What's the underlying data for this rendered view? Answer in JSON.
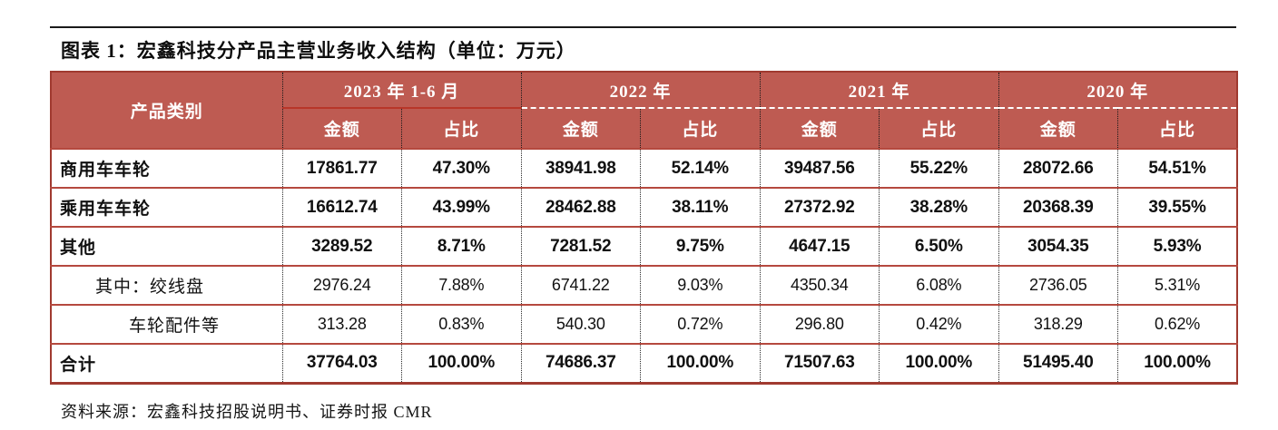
{
  "title": "图表 1：宏鑫科技分产品主营业务收入结构（单位：万元）",
  "source": "资料来源：宏鑫科技招股说明书、证券时报 CMR",
  "colors": {
    "header_bg": "#BE5B52",
    "table_border": "#A03A30",
    "row_separator": "#B5493F",
    "header_text": "#FFFFFF"
  },
  "table": {
    "product_col_header": "产品类别",
    "year_groups": [
      {
        "label": "2023 年 1-6 月"
      },
      {
        "label": "2022 年"
      },
      {
        "label": "2021 年"
      },
      {
        "label": "2020 年"
      }
    ],
    "sub_headers": {
      "amount": "金额",
      "share": "占比"
    },
    "rows": [
      {
        "label": "商用车车轮",
        "bold": true,
        "indent": 0,
        "values": [
          "17861.77",
          "47.30%",
          "38941.98",
          "52.14%",
          "39487.56",
          "55.22%",
          "28072.66",
          "54.51%"
        ]
      },
      {
        "label": "乘用车车轮",
        "bold": true,
        "indent": 0,
        "values": [
          "16612.74",
          "43.99%",
          "28462.88",
          "38.11%",
          "27372.92",
          "38.28%",
          "20368.39",
          "39.55%"
        ]
      },
      {
        "label": "其他",
        "bold": true,
        "indent": 0,
        "values": [
          "3289.52",
          "8.71%",
          "7281.52",
          "9.75%",
          "4647.15",
          "6.50%",
          "3054.35",
          "5.93%"
        ]
      },
      {
        "label": "其中：绞线盘",
        "bold": false,
        "indent": 1,
        "values": [
          "2976.24",
          "7.88%",
          "6741.22",
          "9.03%",
          "4350.34",
          "6.08%",
          "2736.05",
          "5.31%"
        ]
      },
      {
        "label": "车轮配件等",
        "bold": false,
        "indent": 2,
        "values": [
          "313.28",
          "0.83%",
          "540.30",
          "0.72%",
          "296.80",
          "0.42%",
          "318.29",
          "0.62%"
        ]
      },
      {
        "label": "合计",
        "bold": true,
        "indent": 0,
        "values": [
          "37764.03",
          "100.00%",
          "74686.37",
          "100.00%",
          "71507.63",
          "100.00%",
          "51495.40",
          "100.00%"
        ]
      }
    ]
  }
}
